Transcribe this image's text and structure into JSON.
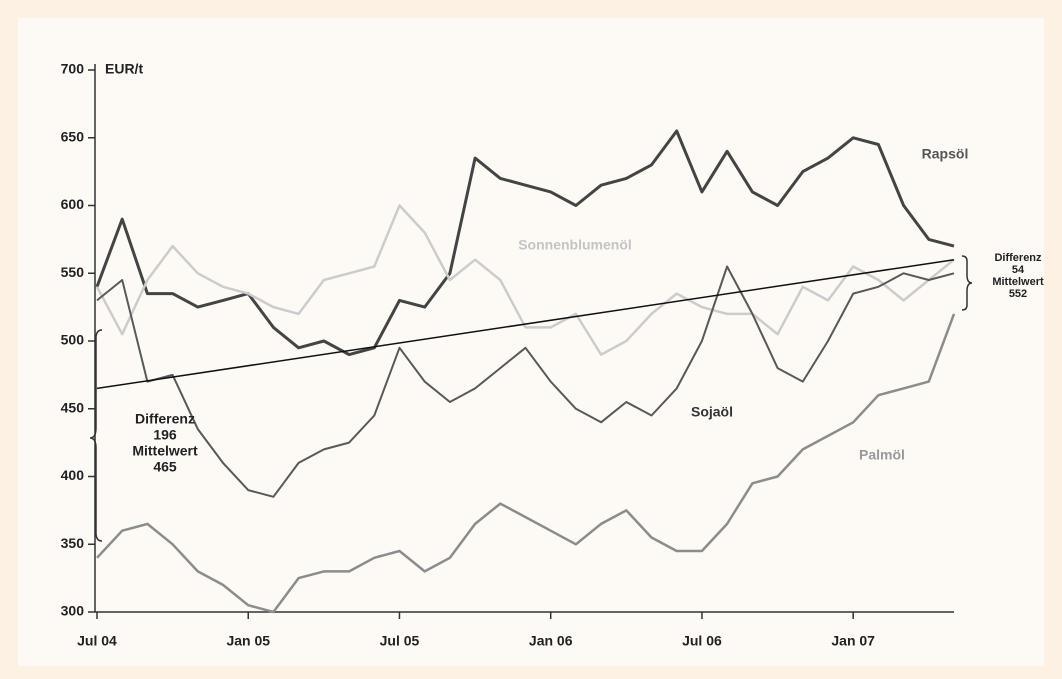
{
  "chart_data": {
    "type": "line",
    "y_label": "EUR/t",
    "x": [
      "2004-07",
      "2004-08",
      "2004-09",
      "2004-10",
      "2004-11",
      "2004-12",
      "2005-01",
      "2005-02",
      "2005-03",
      "2005-04",
      "2005-05",
      "2005-06",
      "2005-07",
      "2005-08",
      "2005-09",
      "2005-10",
      "2005-11",
      "2005-12",
      "2006-01",
      "2006-02",
      "2006-03",
      "2006-04",
      "2006-05",
      "2006-06",
      "2006-07",
      "2006-08",
      "2006-09",
      "2006-10",
      "2006-11",
      "2006-12",
      "2007-01",
      "2007-02",
      "2007-03",
      "2007-04",
      "2007-05"
    ],
    "xlim": [
      "2004-07",
      "2007-05"
    ],
    "xticks": [
      {
        "value": "2004-07",
        "label": "Jul 04"
      },
      {
        "value": "2005-01",
        "label": "Jan 05"
      },
      {
        "value": "2005-07",
        "label": "Jul 05"
      },
      {
        "value": "2006-01",
        "label": "Jan 06"
      },
      {
        "value": "2006-07",
        "label": "Jul 06"
      },
      {
        "value": "2007-01",
        "label": "Jan 07"
      }
    ],
    "ylim": [
      300,
      700
    ],
    "yticks": [
      300,
      350,
      400,
      450,
      500,
      550,
      600,
      650,
      700
    ],
    "series": [
      {
        "name": "Rapsöl",
        "color": "#444444",
        "values": [
          540,
          590,
          535,
          535,
          525,
          530,
          535,
          510,
          495,
          500,
          490,
          495,
          530,
          525,
          550,
          635,
          620,
          615,
          610,
          600,
          615,
          620,
          630,
          655,
          610,
          640,
          610,
          600,
          625,
          635,
          650,
          645,
          600,
          575,
          570
        ]
      },
      {
        "name": "Sonnenblumenöl",
        "color": "#cccccc",
        "values": [
          540,
          505,
          545,
          570,
          550,
          540,
          535,
          525,
          520,
          545,
          550,
          555,
          600,
          580,
          545,
          560,
          545,
          510,
          510,
          520,
          490,
          500,
          520,
          535,
          525,
          520,
          520,
          505,
          540,
          530,
          555,
          545,
          530,
          545,
          560
        ]
      },
      {
        "name": "Sojaöl",
        "color": "#595959",
        "values": [
          530,
          545,
          470,
          475,
          435,
          410,
          390,
          385,
          410,
          420,
          425,
          445,
          495,
          470,
          455,
          465,
          480,
          495,
          470,
          450,
          440,
          455,
          445,
          465,
          500,
          555,
          520,
          480,
          470,
          500,
          535,
          540,
          550,
          545,
          550
        ]
      },
      {
        "name": "Palmöl",
        "color": "#8c8c8c",
        "values": [
          340,
          360,
          365,
          350,
          330,
          320,
          305,
          300,
          325,
          330,
          330,
          340,
          345,
          330,
          340,
          365,
          380,
          370,
          360,
          350,
          365,
          375,
          355,
          345,
          345,
          365,
          395,
          400,
          420,
          430,
          440,
          460,
          465,
          470,
          520
        ]
      }
    ],
    "trend_line": {
      "color": "#111111",
      "x": [
        "2004-07",
        "2007-05"
      ],
      "values": [
        465,
        560
      ]
    },
    "annotations": {
      "left": [
        "Differenz",
        "196",
        "Mittelwert",
        "465"
      ],
      "right": [
        "Differenz",
        "54",
        "Mittelwert",
        "552"
      ]
    }
  }
}
